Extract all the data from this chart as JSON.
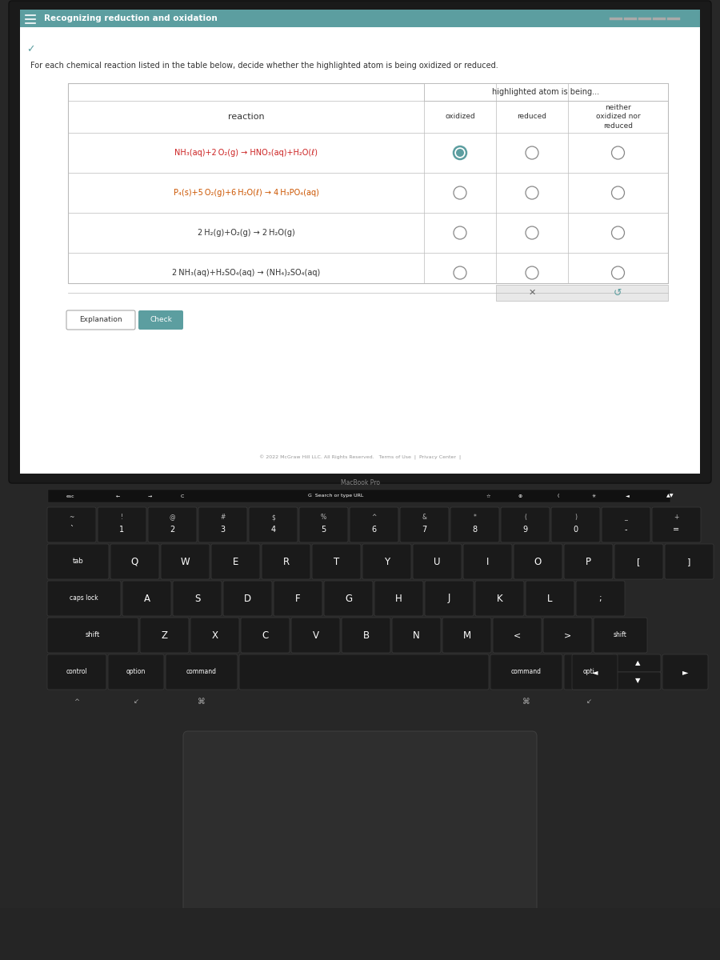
{
  "title": "Recognizing reduction and oxidation",
  "instruction": "For each chemical reaction listed in the table below, decide whether the highlighted atom is being oxidized or reduced.",
  "header_col1": "reaction",
  "header_col2": "highlighted atom is being...",
  "col_headers": [
    "oxidized",
    "reduced",
    "neither\noxidized nor\nreduced"
  ],
  "reactions": [
    "NH₃(aq)+2 O₂(g) → HNO₃(aq)+H₂O(ℓ)",
    "P₄(s)+5 O₂(g)+6 H₂O(ℓ) → 4 H₃PO₄(aq)",
    "2 H₂(g)+O₂(g) → 2 H₂O(g)",
    "2 NH₃(aq)+H₂SO₄(aq) → (NH₄)₂SO₄(aq)"
  ],
  "react_colors": [
    "#cc2222",
    "#cc5500",
    "#333333",
    "#333333"
  ],
  "title_bar_color": "#5c9ea0",
  "screen_bg": "#f0f0f0",
  "white_panel": "#ffffff",
  "table_border_color": "#bbbbbb",
  "radio_selected_color": "#5c9ea0",
  "radio_border_color": "#888888",
  "keyboard_bg": "#252525",
  "key_face": "#1a1a1a",
  "key_edge": "#3a3a3a",
  "key_text": "#ffffff",
  "touchpad_color": "#2e2e2e",
  "copyright": "© 2022 McGraw Hill LLC. All Rights Reserved.   Terms of Use  |  Privacy Center  |",
  "macbook_text": "MacBook Pro"
}
